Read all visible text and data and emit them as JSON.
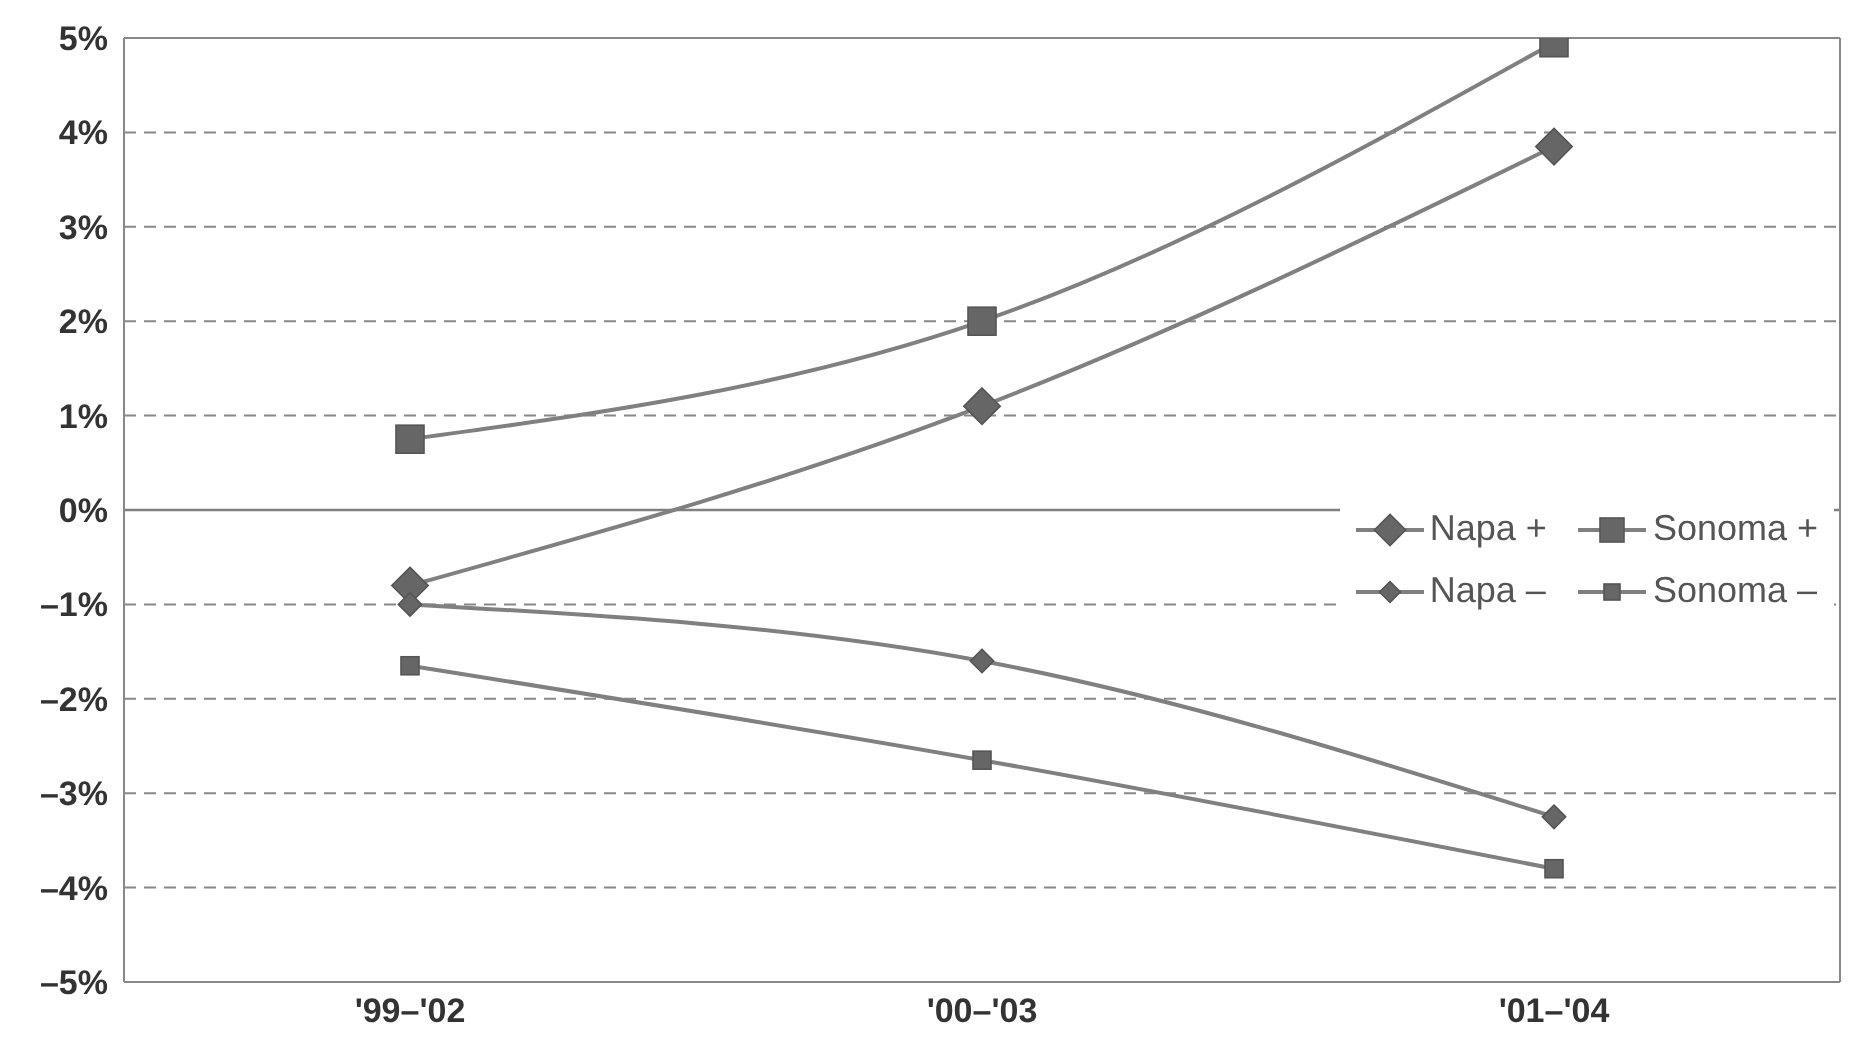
{
  "chart_data": {
    "type": "line",
    "categories": [
      "'99–'02",
      "'00–'03",
      "'01–'04"
    ],
    "series": [
      {
        "name": "Napa +",
        "color": "#808080",
        "marker": "diamond",
        "values": [
          -0.8,
          1.1,
          3.85
        ]
      },
      {
        "name": "Sonoma +",
        "color": "#808080",
        "marker": "square",
        "values": [
          0.75,
          2.0,
          4.95
        ]
      },
      {
        "name": "Napa –",
        "color": "#808080",
        "marker": "diamond",
        "values": [
          -1.0,
          -1.6,
          -3.25
        ]
      },
      {
        "name": "Sonoma –",
        "color": "#808080",
        "marker": "square",
        "values": [
          -1.65,
          -2.65,
          -3.8
        ]
      }
    ],
    "ylim": [
      -5,
      5
    ],
    "yticks": [
      {
        "value": -5,
        "label": "–5%"
      },
      {
        "value": -4,
        "label": "–4%"
      },
      {
        "value": -3,
        "label": "–3%"
      },
      {
        "value": -2,
        "label": "–2%"
      },
      {
        "value": -1,
        "label": "–1%"
      },
      {
        "value": 0,
        "label": "0%"
      },
      {
        "value": 1,
        "label": "1%"
      },
      {
        "value": 2,
        "label": "2%"
      },
      {
        "value": 3,
        "label": "3%"
      },
      {
        "value": 4,
        "label": "4%"
      },
      {
        "value": 5,
        "label": "5%"
      }
    ],
    "ref_lines": [
      {
        "axis": "y",
        "value": 0,
        "color": "#808080",
        "line_style": "solid"
      }
    ],
    "grid": "y",
    "legend": "right",
    "line_style": "solid"
  }
}
